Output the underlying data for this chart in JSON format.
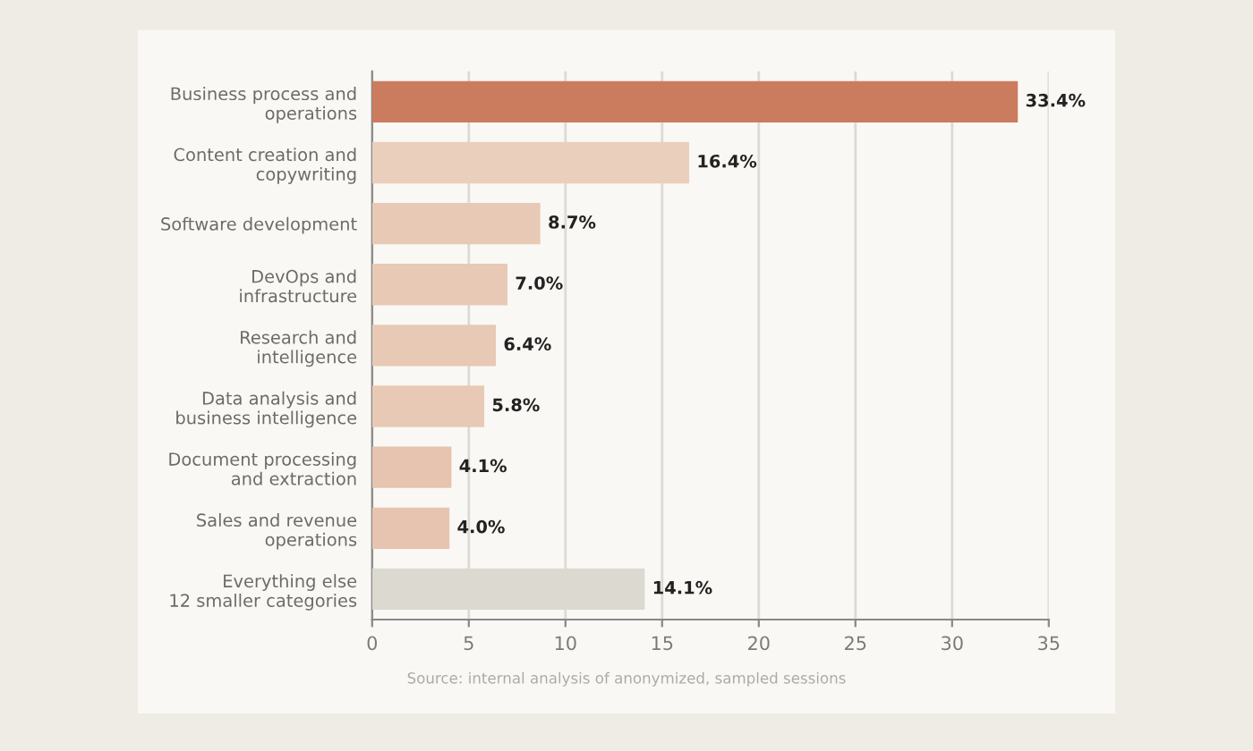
{
  "chart_data": {
    "type": "bar",
    "orientation": "horizontal",
    "categories": [
      "Business process and\noperations",
      "Content creation and\ncopywriting",
      "Software development",
      "DevOps and\ninfrastructure",
      "Research and\nintelligence",
      "Data analysis and\nbusiness intelligence",
      "Document processing\nand extraction",
      "Sales and revenue\noperations",
      "Everything else\n12 smaller categories"
    ],
    "values": [
      33.4,
      16.4,
      8.7,
      7.0,
      6.4,
      5.8,
      4.1,
      4.0,
      14.1
    ],
    "colors": [
      "#cc7c5e",
      "#ebcfbd",
      "#e8c9b5",
      "#e8c9b5",
      "#e8c9b5",
      "#e8c9b5",
      "#e6c4b0",
      "#e6c4b0",
      "#dcd9d0"
    ],
    "value_labels": [
      "33.4%",
      "16.4%",
      "8.7%",
      "7.0%",
      "6.4%",
      "5.8%",
      "4.1%",
      "4.0%",
      "14.1%"
    ],
    "xlim": [
      0,
      35
    ],
    "xticks": [
      0,
      5,
      10,
      15,
      20,
      25,
      30,
      35
    ],
    "grid": "x",
    "annotations": [
      "Source: internal analysis of anonymized, sampled sessions"
    ]
  }
}
